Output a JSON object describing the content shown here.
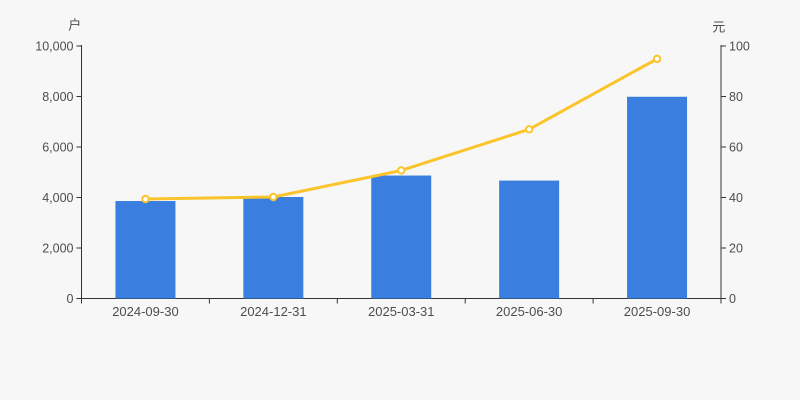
{
  "chart": {
    "background": "#f7f7f7",
    "axis_color": "#333333",
    "text_color": "#4d4d4d"
  },
  "chart_data": {
    "type": "bar",
    "subtype": "bar+line dual axis",
    "categories": [
      "2024-09-30",
      "2024-12-31",
      "2025-03-31",
      "2025-06-30",
      "2025-09-30"
    ],
    "series": [
      {
        "name": "bar-series",
        "type": "bar",
        "y_axis": "left",
        "color": "#3a7ee0",
        "values": [
          3860,
          4020,
          4870,
          4670,
          7990
        ]
      },
      {
        "name": "line-series",
        "type": "line",
        "y_axis": "right",
        "color": "#fbc42b",
        "marker_fill": "#ffffff",
        "values": [
          39.4,
          40.2,
          50.7,
          67.0,
          94.9
        ]
      }
    ],
    "left_axis": {
      "name": "户",
      "min": 0,
      "max": 10000,
      "ticks": [
        0,
        2000,
        4000,
        6000,
        8000,
        10000
      ],
      "tick_labels": [
        "0",
        "2,000",
        "4,000",
        "6,000",
        "8,000",
        "10,000"
      ]
    },
    "right_axis": {
      "name": "元",
      "min": 0,
      "max": 100,
      "ticks": [
        0,
        20,
        40,
        60,
        80,
        100
      ],
      "tick_labels": [
        "0",
        "20",
        "40",
        "60",
        "80",
        "100"
      ]
    },
    "legend": "none",
    "grid": "off",
    "title": ""
  }
}
